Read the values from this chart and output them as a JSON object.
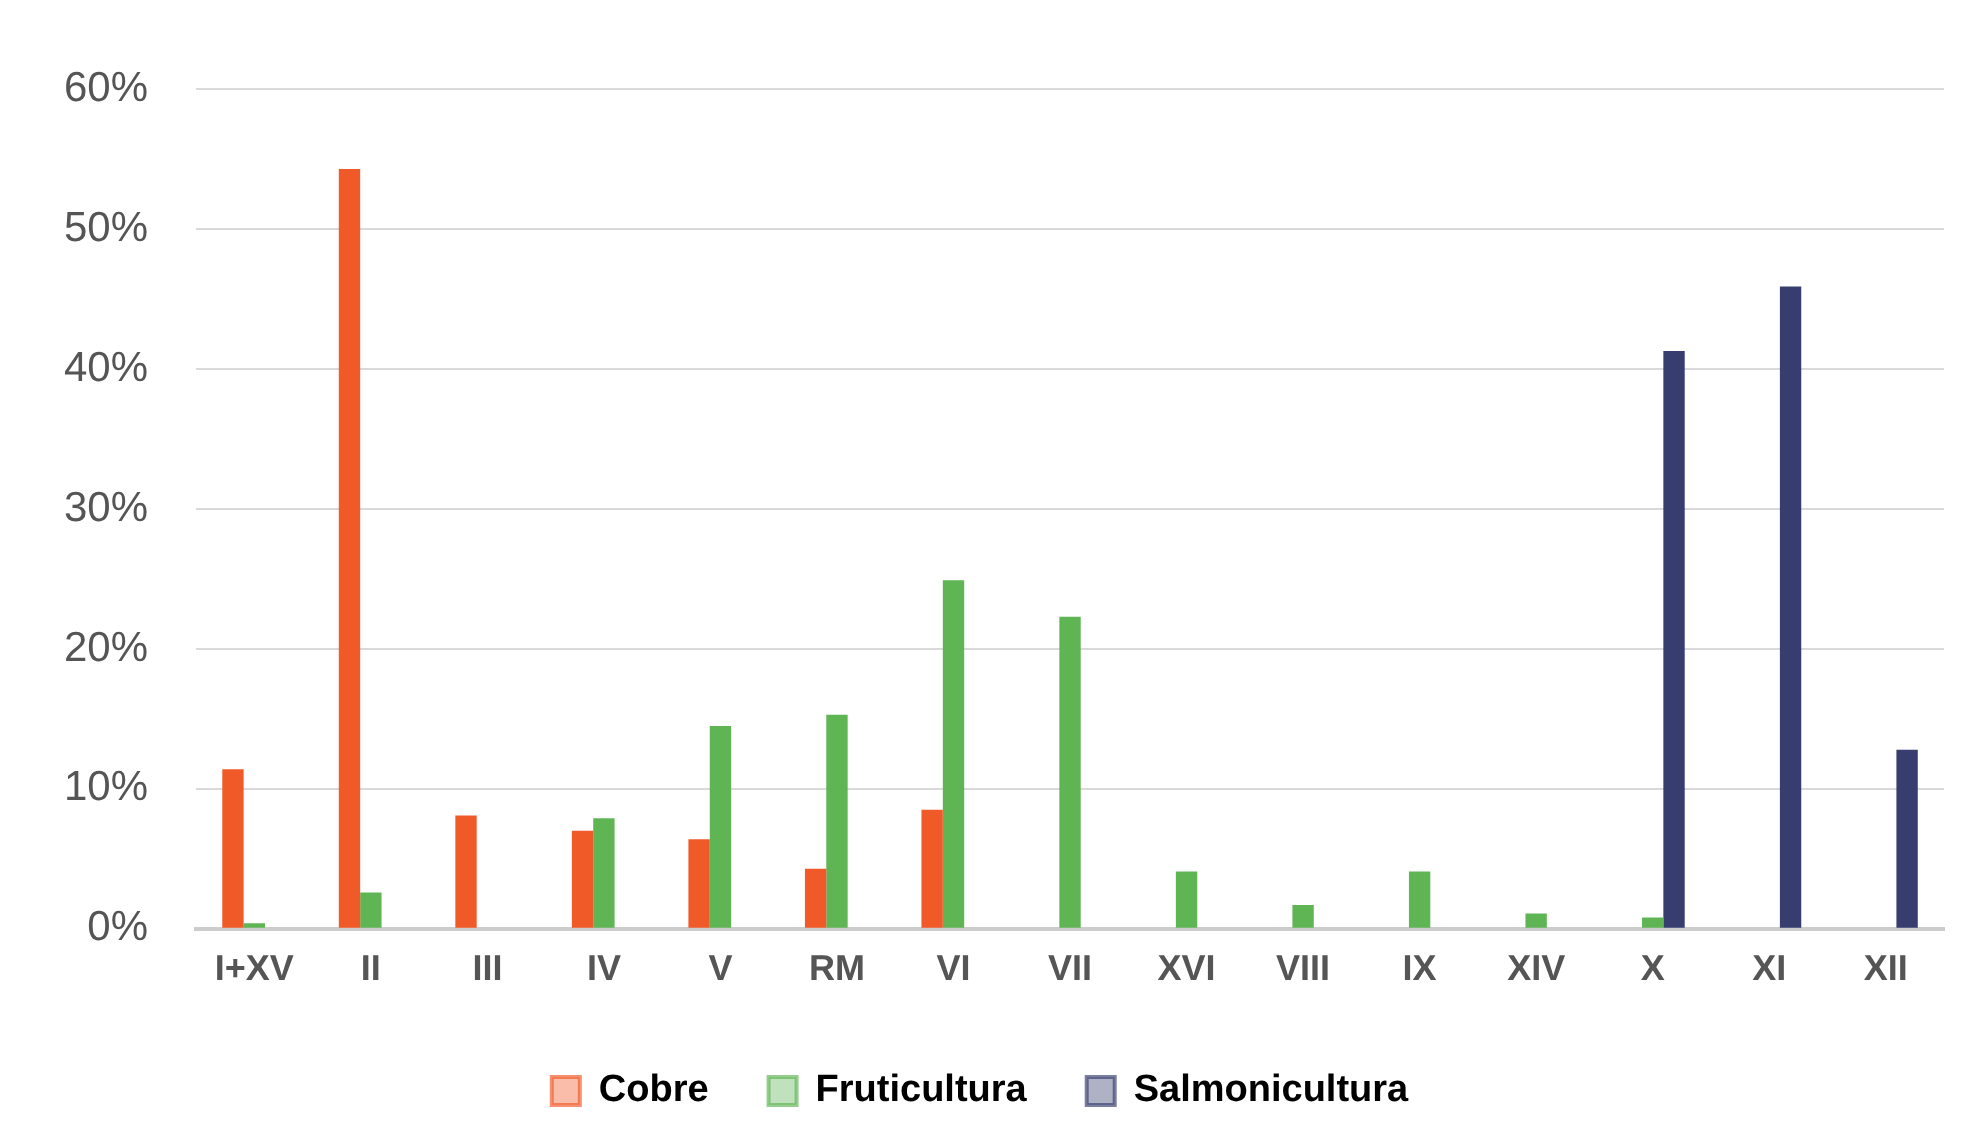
{
  "chart_data": {
    "type": "bar",
    "categories": [
      "I+XV",
      "II",
      "III",
      "IV",
      "V",
      "RM",
      "VI",
      "VII",
      "XVI",
      "VIII",
      "IX",
      "XIV",
      "X",
      "XI",
      "XII"
    ],
    "series": [
      {
        "name": "Cobre",
        "color": "#f05a28",
        "values": [
          11.4,
          54.3,
          8.1,
          7.0,
          6.4,
          4.3,
          8.5,
          null,
          null,
          null,
          null,
          null,
          null,
          null,
          null
        ]
      },
      {
        "name": "Fruticultura",
        "color": "#5fb454",
        "values": [
          0.4,
          2.6,
          null,
          7.9,
          14.5,
          15.3,
          24.9,
          22.3,
          4.1,
          1.7,
          4.1,
          1.1,
          0.8,
          null,
          null
        ]
      },
      {
        "name": "Salmonicultura",
        "color": "#373d6f",
        "values": [
          null,
          null,
          null,
          null,
          null,
          null,
          null,
          null,
          null,
          null,
          null,
          null,
          41.3,
          45.9,
          12.8
        ]
      }
    ],
    "ylim": [
      0,
      60
    ],
    "yticks": [
      {
        "value": 0,
        "label": "0%"
      },
      {
        "value": 10,
        "label": "10%"
      },
      {
        "value": 20,
        "label": "20%"
      },
      {
        "value": 30,
        "label": "30%"
      },
      {
        "value": 40,
        "label": "40%"
      },
      {
        "value": 50,
        "label": "50%"
      },
      {
        "value": 60,
        "label": "60%"
      }
    ],
    "grid": "y",
    "legend": "bottom"
  }
}
